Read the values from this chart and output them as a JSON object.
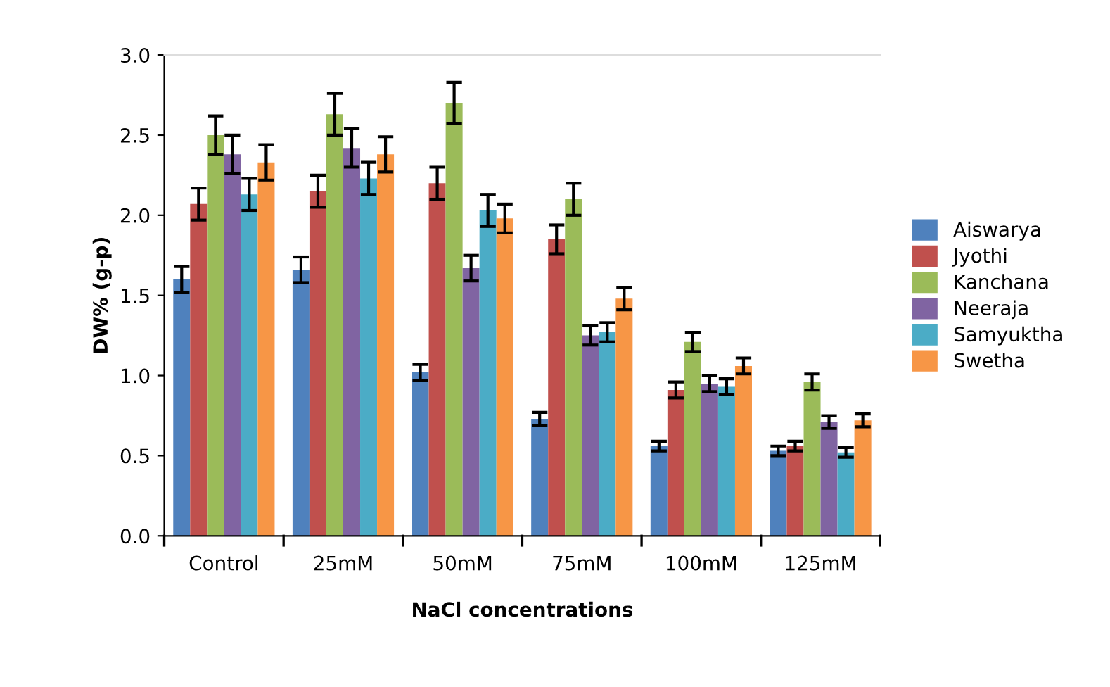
{
  "chart_data": {
    "type": "bar",
    "xlabel": "NaCl concentrations",
    "ylabel": "DW% (g-p)",
    "categories": [
      "Control",
      "25mM",
      "50mM",
      "75mM",
      "100mM",
      "125mM"
    ],
    "series": [
      {
        "name": "Aiswarya",
        "color": "#4f81bd",
        "values": [
          1.6,
          1.66,
          1.02,
          0.73,
          0.56,
          0.53
        ],
        "errors": [
          0.08,
          0.08,
          0.05,
          0.04,
          0.03,
          0.03
        ]
      },
      {
        "name": "Jyothi",
        "color": "#c0504d",
        "values": [
          2.07,
          2.15,
          2.2,
          1.85,
          0.91,
          0.56
        ],
        "errors": [
          0.1,
          0.1,
          0.1,
          0.09,
          0.05,
          0.03
        ]
      },
      {
        "name": "Kanchana",
        "color": "#9bbb59",
        "values": [
          2.5,
          2.63,
          2.7,
          2.1,
          1.21,
          0.96
        ],
        "errors": [
          0.12,
          0.13,
          0.13,
          0.1,
          0.06,
          0.05
        ]
      },
      {
        "name": "Neeraja",
        "color": "#8064a2",
        "values": [
          2.38,
          2.42,
          1.67,
          1.25,
          0.95,
          0.71
        ],
        "errors": [
          0.12,
          0.12,
          0.08,
          0.06,
          0.05,
          0.04
        ]
      },
      {
        "name": "Samyuktha",
        "color": "#4bacc6",
        "values": [
          2.13,
          2.23,
          2.03,
          1.27,
          0.93,
          0.52
        ],
        "errors": [
          0.1,
          0.1,
          0.1,
          0.06,
          0.05,
          0.03
        ]
      },
      {
        "name": "Swetha",
        "color": "#f79646",
        "values": [
          2.33,
          2.38,
          1.98,
          1.48,
          1.06,
          0.72
        ],
        "errors": [
          0.11,
          0.11,
          0.09,
          0.07,
          0.05,
          0.04
        ]
      }
    ],
    "ylim": [
      0,
      3.0
    ],
    "yticks": [
      {
        "value": 0,
        "label": "0.0"
      },
      {
        "value": 0.5,
        "label": "0.5"
      },
      {
        "value": 1.0,
        "label": "1.0"
      },
      {
        "value": 1.5,
        "label": "1.5"
      },
      {
        "value": 2.0,
        "label": "2.0"
      },
      {
        "value": 2.5,
        "label": "2.5"
      },
      {
        "value": 3.0,
        "label": "3.0"
      }
    ],
    "grid": false,
    "legend": "right"
  }
}
